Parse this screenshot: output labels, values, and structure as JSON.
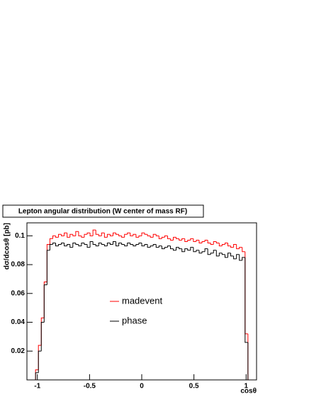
{
  "chart_data": {
    "type": "histogram",
    "title": "Lepton angular distribution (W center of mass RF)",
    "x_label": "cosθ",
    "y_label": "dσ/dcosθ [pb]",
    "bins": [
      -1.1,
      -1.0725,
      -1.045,
      -1.0175,
      -0.99,
      -0.9625,
      -0.935,
      -0.9075,
      -0.88,
      -0.8525,
      -0.825,
      -0.7975,
      -0.77,
      -0.7425,
      -0.715,
      -0.6875,
      -0.66,
      -0.6325,
      -0.605,
      -0.5775,
      -0.55,
      -0.5225,
      -0.495,
      -0.4675,
      -0.44,
      -0.4125,
      -0.385,
      -0.3575,
      -0.33,
      -0.3025,
      -0.275,
      -0.2475,
      -0.22,
      -0.1925,
      -0.165,
      -0.1375,
      -0.11,
      -0.0825,
      -0.055,
      -0.0275,
      0,
      0.0275,
      0.055,
      0.0825,
      0.11,
      0.1375,
      0.165,
      0.1925,
      0.22,
      0.2475,
      0.275,
      0.3025,
      0.33,
      0.3575,
      0.385,
      0.4125,
      0.44,
      0.4675,
      0.495,
      0.5225,
      0.55,
      0.5775,
      0.605,
      0.6325,
      0.66,
      0.6875,
      0.715,
      0.7425,
      0.77,
      0.7975,
      0.825,
      0.8525,
      0.88,
      0.9075,
      0.935,
      0.9625,
      0.99,
      1.0175,
      1.045,
      1.0725,
      1.1
    ],
    "series": [
      {
        "name": "madevent",
        "color": "#ff0000",
        "values": [
          0,
          0,
          0,
          0.007,
          0.024,
          0.043,
          0.068,
          0.094,
          0.098,
          0.1,
          0.099,
          0.101,
          0.1,
          0.102,
          0.099,
          0.101,
          0.1,
          0.103,
          0.1,
          0.099,
          0.101,
          0.102,
          0.1,
          0.104,
          0.101,
          0.1,
          0.102,
          0.099,
          0.101,
          0.1,
          0.102,
          0.101,
          0.1,
          0.099,
          0.101,
          0.102,
          0.1,
          0.101,
          0.099,
          0.1,
          0.102,
          0.101,
          0.1,
          0.099,
          0.101,
          0.1,
          0.098,
          0.099,
          0.1,
          0.098,
          0.097,
          0.099,
          0.098,
          0.097,
          0.098,
          0.096,
          0.097,
          0.098,
          0.096,
          0.097,
          0.095,
          0.096,
          0.097,
          0.095,
          0.094,
          0.096,
          0.095,
          0.093,
          0.094,
          0.095,
          0.093,
          0.092,
          0.094,
          0.091,
          0.092,
          0.089,
          0.032,
          0,
          0,
          0
        ]
      },
      {
        "name": "phase",
        "color": "#000000",
        "values": [
          0,
          0,
          0,
          0.005,
          0.02,
          0.04,
          0.066,
          0.09,
          0.094,
          0.095,
          0.093,
          0.094,
          0.095,
          0.093,
          0.094,
          0.092,
          0.095,
          0.094,
          0.093,
          0.095,
          0.094,
          0.092,
          0.096,
          0.094,
          0.093,
          0.095,
          0.094,
          0.093,
          0.095,
          0.094,
          0.096,
          0.093,
          0.095,
          0.094,
          0.093,
          0.095,
          0.094,
          0.093,
          0.094,
          0.095,
          0.093,
          0.094,
          0.092,
          0.093,
          0.094,
          0.092,
          0.093,
          0.091,
          0.092,
          0.093,
          0.091,
          0.09,
          0.092,
          0.091,
          0.089,
          0.091,
          0.09,
          0.092,
          0.089,
          0.09,
          0.088,
          0.089,
          0.091,
          0.087,
          0.088,
          0.09,
          0.086,
          0.088,
          0.087,
          0.085,
          0.088,
          0.086,
          0.084,
          0.087,
          0.083,
          0.085,
          0.026,
          0,
          0,
          0
        ]
      }
    ],
    "xlim": [
      -1.1,
      1.1
    ],
    "xticks": [
      -1,
      -0.5,
      0,
      0.5,
      1
    ],
    "ylim": [
      0,
      0.109
    ],
    "yticks": [
      0.02,
      0.04,
      0.06,
      0.08,
      0.1
    ],
    "legend": "center"
  }
}
